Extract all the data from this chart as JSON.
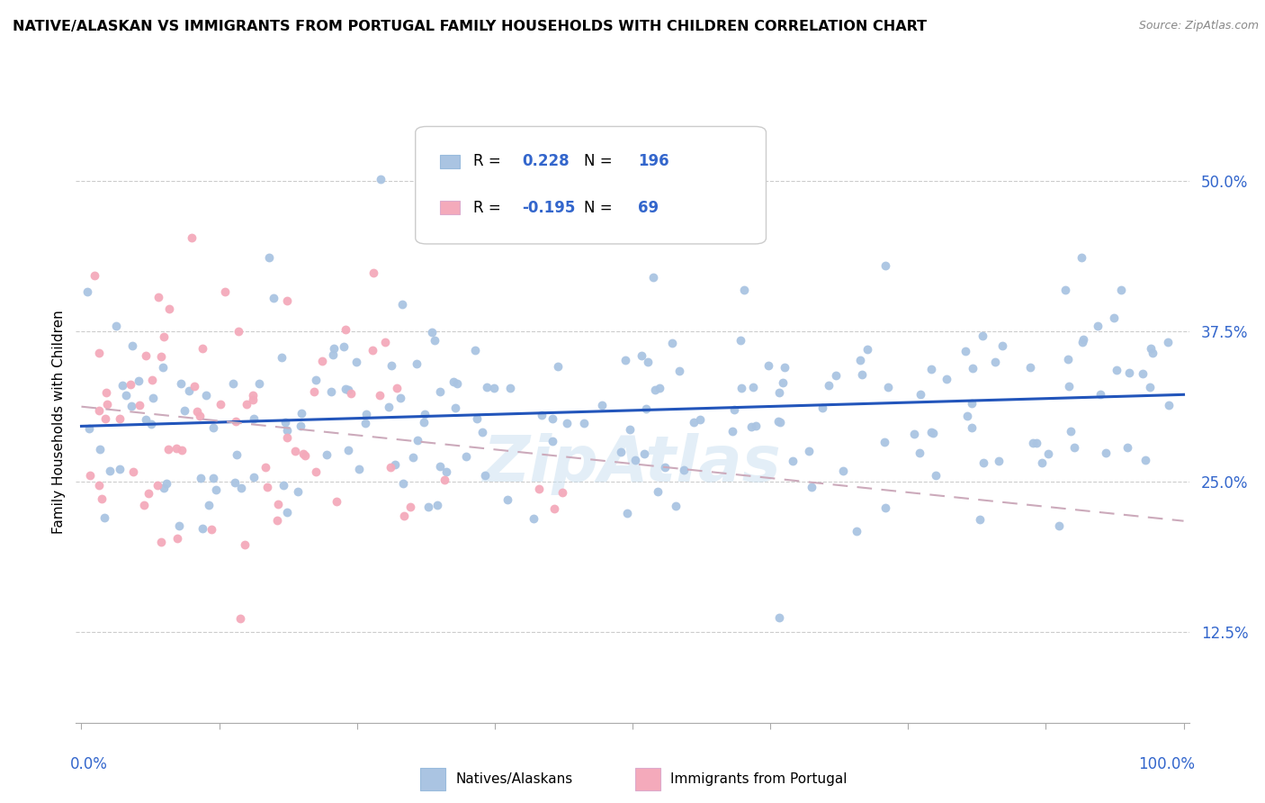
{
  "title": "NATIVE/ALASKAN VS IMMIGRANTS FROM PORTUGAL FAMILY HOUSEHOLDS WITH CHILDREN CORRELATION CHART",
  "source": "Source: ZipAtlas.com",
  "ylabel": "Family Households with Children",
  "ytick_labels": [
    "12.5%",
    "25.0%",
    "37.5%",
    "50.0%"
  ],
  "ytick_vals": [
    0.125,
    0.25,
    0.375,
    0.5
  ],
  "xlim": [
    0.0,
    1.0
  ],
  "ylim": [
    0.05,
    0.55
  ],
  "blue_R": 0.228,
  "blue_N": 196,
  "pink_R": -0.195,
  "pink_N": 69,
  "blue_color": "#aac4e2",
  "pink_color": "#f4aabb",
  "blue_line_color": "#2255bb",
  "pink_line_color": "#ccaabb",
  "axis_label_color": "#3366cc",
  "background_color": "#ffffff",
  "watermark_color": "#c8dff0",
  "watermark_alpha": 0.5
}
